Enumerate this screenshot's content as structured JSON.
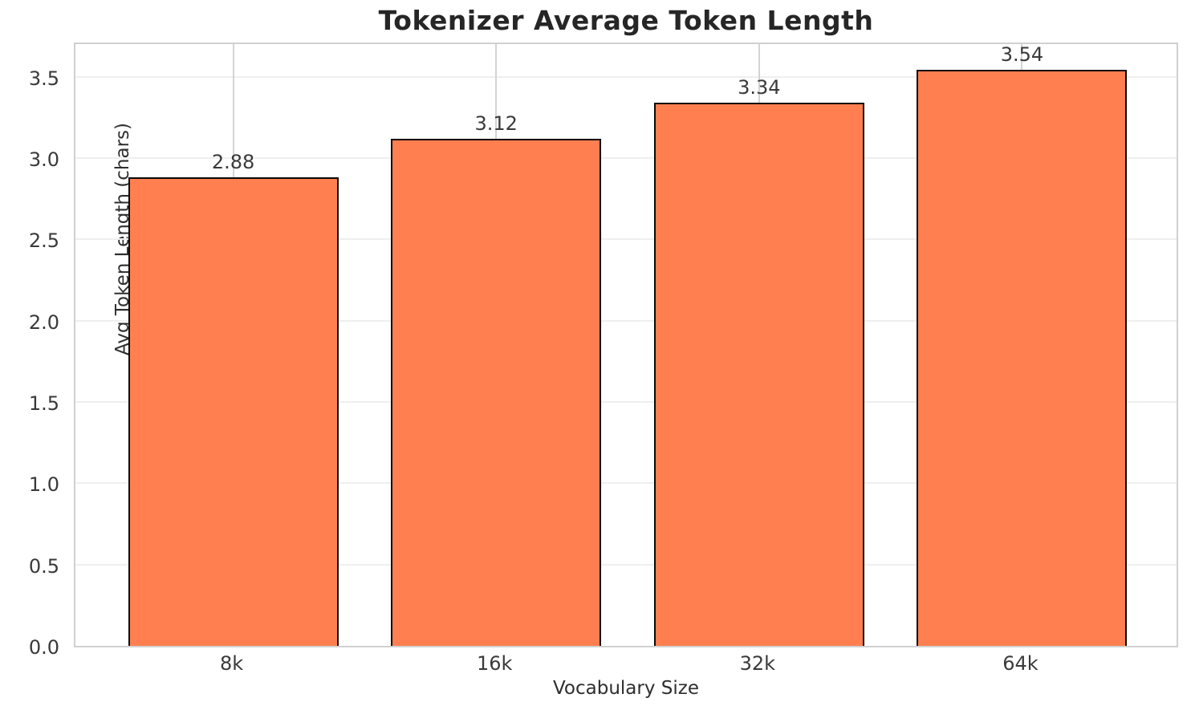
{
  "chart_data": {
    "type": "bar",
    "title": "Tokenizer Average Token Length",
    "xlabel": "Vocabulary Size",
    "ylabel": "Avg Token Length (chars)",
    "categories": [
      "8k",
      "16k",
      "32k",
      "64k"
    ],
    "values": [
      2.88,
      3.12,
      3.34,
      3.54
    ],
    "bar_labels": [
      "2.88",
      "3.12",
      "3.34",
      "3.54"
    ],
    "ytick_labels": [
      "0.0",
      "0.5",
      "1.0",
      "1.5",
      "2.0",
      "2.5",
      "3.0",
      "3.5"
    ],
    "ylim": [
      0,
      3.72
    ],
    "xlim": [
      -0.6,
      3.6
    ],
    "bar_width": 0.8,
    "grid": true,
    "legend_position": "none",
    "colors": {
      "bar_fill": "#FF7F50",
      "bar_edge": "#0a0a0a",
      "title_text": "#262626",
      "tick_text": "#3a3a3a",
      "grid_horizontal": "#efefef",
      "grid_vertical": "#d4d4d4",
      "spine": "#d0d0d0",
      "background": "#ffffff"
    }
  }
}
